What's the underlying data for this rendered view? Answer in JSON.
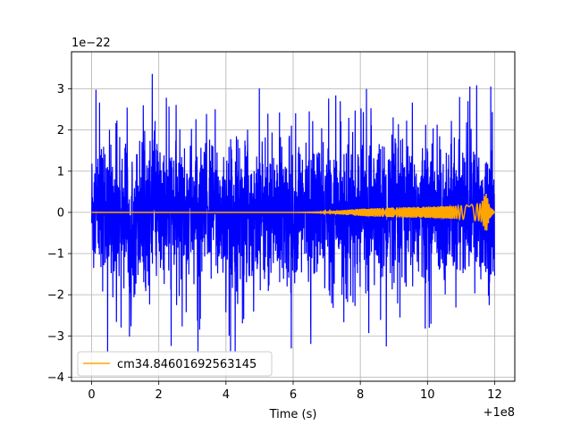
{
  "chart_data": {
    "type": "line",
    "title": "",
    "xlabel": "Time (s)",
    "ylabel": "",
    "x_offset_text": "+1e8",
    "y_scale_text": "1e−22",
    "xlim": [
      -0.6,
      12.6
    ],
    "ylim": [
      -4.1,
      3.9
    ],
    "x_ticks": [
      0,
      2,
      4,
      6,
      8,
      10,
      12
    ],
    "x_tick_labels": [
      "0",
      "2",
      "4",
      "6",
      "8",
      "10",
      "12"
    ],
    "y_ticks": [
      -4,
      -3,
      -2,
      -1,
      0,
      1,
      2,
      3
    ],
    "y_tick_labels": [
      "−4",
      "−3",
      "−2",
      "−1",
      "0",
      "1",
      "2",
      "3"
    ],
    "grid": true,
    "legend_position": "lower-left",
    "series": [
      {
        "name": "",
        "color": "#0000ff",
        "description_points": {
          "x_range": [
            0,
            12
          ],
          "typical_envelope": [
            -2.2,
            2.2
          ],
          "max_value": 3.6,
          "min_value": -3.6
        }
      },
      {
        "name": "cm34.84601692563145",
        "color": "#ffa500",
        "x_range": [
          0,
          12
        ],
        "envelope_points": [
          [
            0,
            0.0
          ],
          [
            6.0,
            0.0
          ],
          [
            6.8,
            0.01
          ],
          [
            7.4,
            0.05
          ],
          [
            8.0,
            0.09
          ],
          [
            9.0,
            0.12
          ],
          [
            10.0,
            0.14
          ],
          [
            11.0,
            0.16
          ],
          [
            11.6,
            0.22
          ],
          [
            11.75,
            0.5
          ],
          [
            11.85,
            0.15
          ],
          [
            12.0,
            0.0
          ]
        ]
      }
    ]
  }
}
